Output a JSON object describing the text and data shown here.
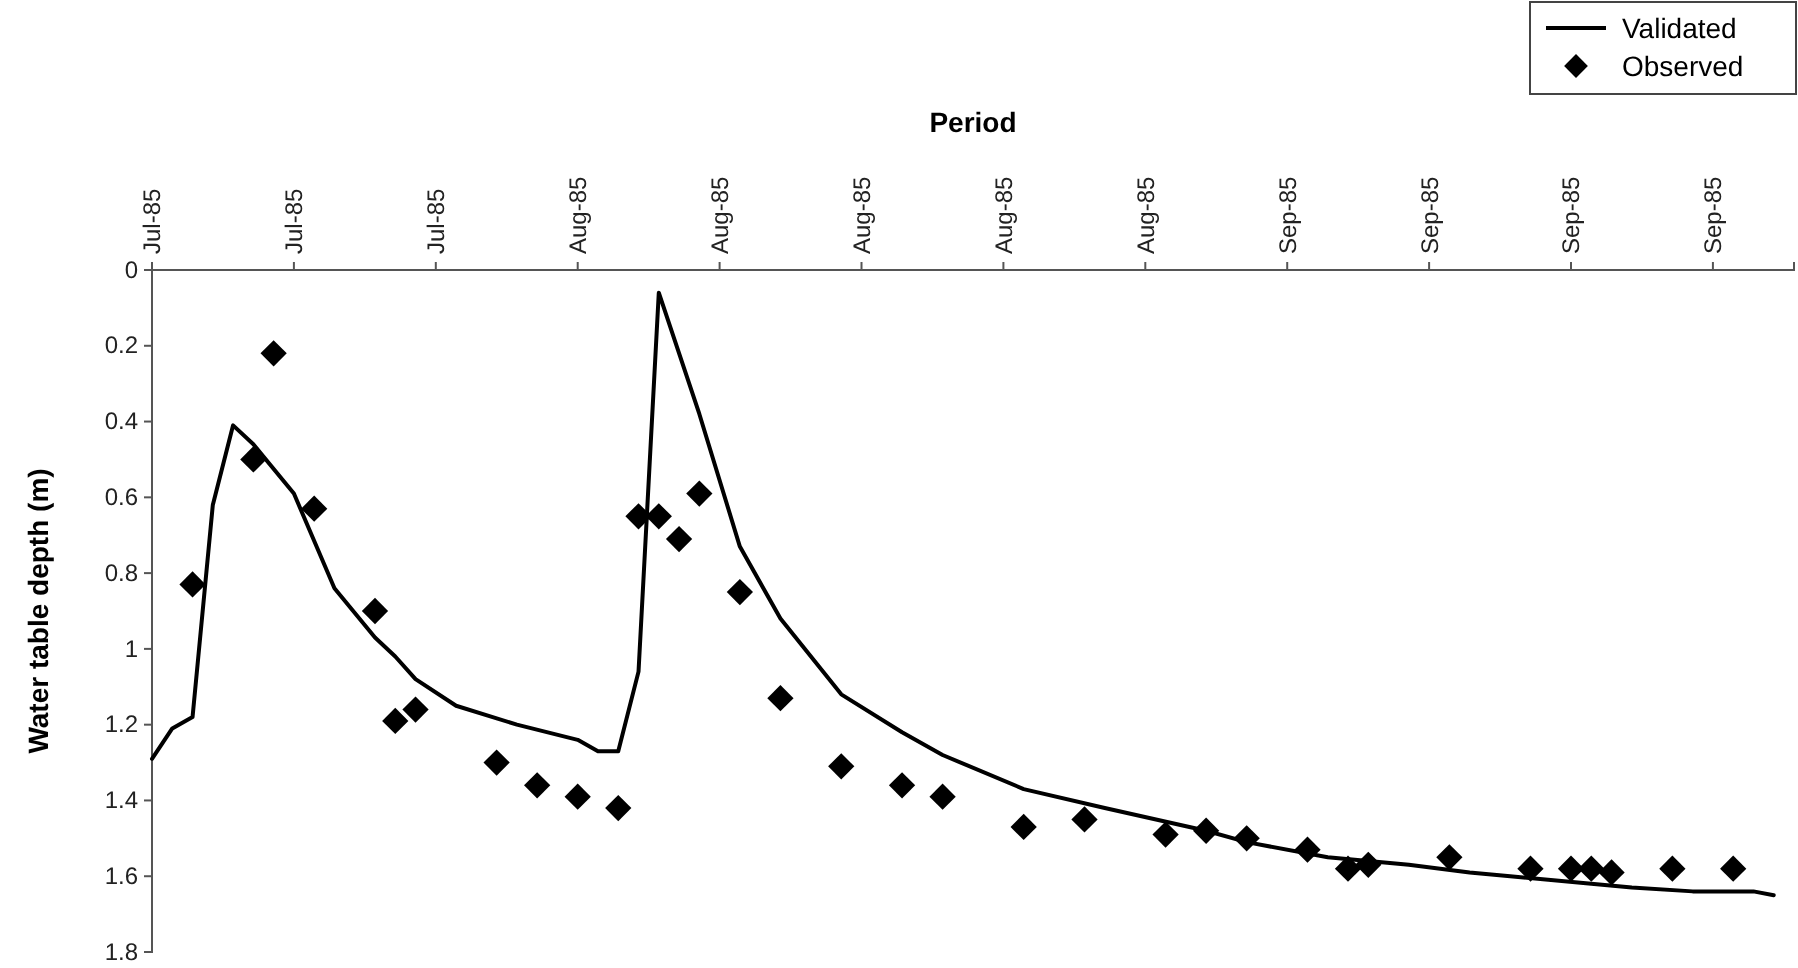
{
  "chart_data": {
    "type": "line",
    "xlabel": "Period",
    "ylabel": "Water table depth (m)",
    "xlim": [
      "1985-07-11",
      "1985-09-30"
    ],
    "xticks": [
      {
        "value": "1985-07-11",
        "label": "Jul-85"
      },
      {
        "value": "1985-07-18",
        "label": "Jul-85"
      },
      {
        "value": "1985-07-25",
        "label": "Jul-85"
      },
      {
        "value": "1985-08-01",
        "label": "Aug-85"
      },
      {
        "value": "1985-08-08",
        "label": "Aug-85"
      },
      {
        "value": "1985-08-15",
        "label": "Aug-85"
      },
      {
        "value": "1985-08-22",
        "label": "Aug-85"
      },
      {
        "value": "1985-08-29",
        "label": "Aug-85"
      },
      {
        "value": "1985-09-05",
        "label": "Sep-85"
      },
      {
        "value": "1985-09-12",
        "label": "Sep-85"
      },
      {
        "value": "1985-09-19",
        "label": "Sep-85"
      },
      {
        "value": "1985-09-26",
        "label": "Sep-85"
      }
    ],
    "ylim": [
      1.8,
      0
    ],
    "yticks": [
      0,
      0.2,
      0.4,
      0.6,
      0.8,
      1,
      1.2,
      1.4,
      1.6,
      1.8
    ],
    "grid": false,
    "legend": "top right",
    "series": [
      {
        "name": "Validated",
        "color": "#000000",
        "marker": "none",
        "line_style": "solid",
        "x": [
          "1985-07-11",
          "1985-07-12",
          "1985-07-13",
          "1985-07-14",
          "1985-07-15",
          "1985-07-16",
          "1985-07-18",
          "1985-07-20",
          "1985-07-22",
          "1985-07-23",
          "1985-07-24",
          "1985-07-26",
          "1985-07-29",
          "1985-08-01",
          "1985-08-02",
          "1985-08-03",
          "1985-08-04",
          "1985-08-05",
          "1985-08-07",
          "1985-08-09",
          "1985-08-11",
          "1985-08-14",
          "1985-08-17",
          "1985-08-19",
          "1985-08-23",
          "1985-08-27",
          "1985-09-01",
          "1985-09-03",
          "1985-09-07",
          "1985-09-11",
          "1985-09-14",
          "1985-09-16",
          "1985-09-20",
          "1985-09-22",
          "1985-09-25",
          "1985-09-28",
          "1985-09-29"
        ],
        "values": [
          1.29,
          1.21,
          1.18,
          0.62,
          0.41,
          0.46,
          0.59,
          0.84,
          0.97,
          1.02,
          1.08,
          1.15,
          1.2,
          1.24,
          1.27,
          1.27,
          1.06,
          0.06,
          0.38,
          0.73,
          0.92,
          1.12,
          1.22,
          1.28,
          1.37,
          1.42,
          1.48,
          1.51,
          1.55,
          1.57,
          1.59,
          1.6,
          1.62,
          1.63,
          1.64,
          1.64,
          1.65
        ]
      },
      {
        "name": "Observed",
        "type": "scatter",
        "color": "#000000",
        "marker": "diamond",
        "x": [
          "1985-07-13",
          "1985-07-16",
          "1985-07-17",
          "1985-07-19",
          "1985-07-22",
          "1985-07-23",
          "1985-07-24",
          "1985-07-28",
          "1985-07-30",
          "1985-08-01",
          "1985-08-03",
          "1985-08-04",
          "1985-08-05",
          "1985-08-06",
          "1985-08-07",
          "1985-08-09",
          "1985-08-11",
          "1985-08-14",
          "1985-08-17",
          "1985-08-19",
          "1985-08-23",
          "1985-08-26",
          "1985-08-30",
          "1985-09-01",
          "1985-09-03",
          "1985-09-06",
          "1985-09-08",
          "1985-09-09",
          "1985-09-13",
          "1985-09-17",
          "1985-09-19",
          "1985-09-20",
          "1985-09-21",
          "1985-09-24",
          "1985-09-27"
        ],
        "values": [
          0.83,
          0.5,
          0.22,
          0.63,
          0.9,
          1.19,
          1.16,
          1.3,
          1.36,
          1.39,
          1.42,
          0.65,
          0.65,
          0.71,
          0.59,
          0.85,
          1.13,
          1.31,
          1.36,
          1.39,
          1.47,
          1.45,
          1.49,
          1.48,
          1.5,
          1.53,
          1.58,
          1.57,
          1.55,
          1.58,
          1.58,
          1.58,
          1.59,
          1.58,
          1.58
        ]
      }
    ]
  }
}
